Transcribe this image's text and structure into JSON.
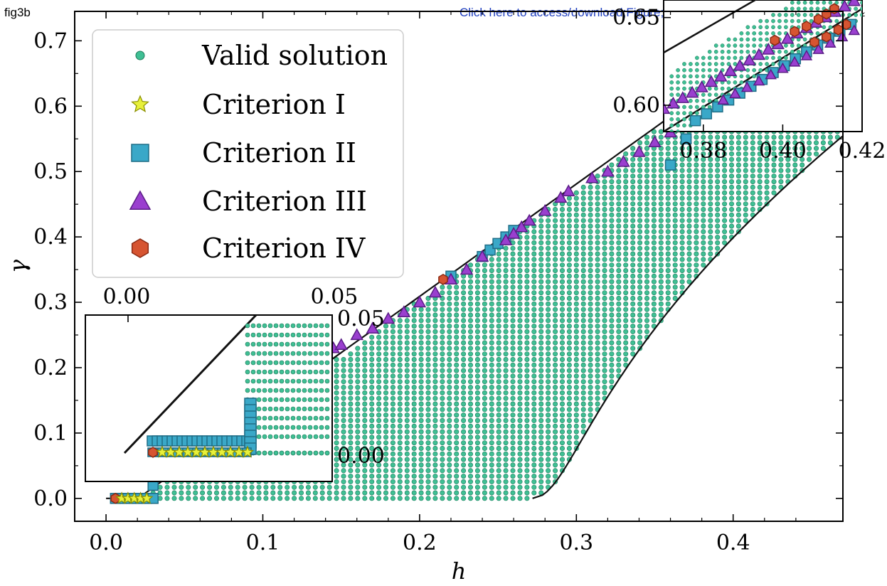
{
  "page": {
    "label": "fig3b",
    "link_text": "Click here to access/download;Figure;fig3b.pdf",
    "link_icon": "download-icon"
  },
  "colors": {
    "valid": "#3fbf94",
    "valid_edge": "#1d7a5a",
    "crit1": "#e7f03a",
    "crit1_edge": "#8a8f00",
    "crit2": "#3aa8c8",
    "crit2_edge": "#1f6d86",
    "crit3": "#9a3fcf",
    "crit3_edge": "#5a1d86",
    "crit4": "#d65431",
    "crit4_edge": "#8a2a14"
  },
  "chart_data": [
    {
      "type": "scatter",
      "xlabel": "h",
      "ylabel": "γ",
      "xlim": [
        -0.02,
        0.47
      ],
      "ylim": [
        -0.035,
        0.745
      ],
      "xticks": [
        "0.0",
        "0.1",
        "0.2",
        "0.3",
        "0.4"
      ],
      "yticks": [
        "0.0",
        "0.1",
        "0.2",
        "0.3",
        "0.4",
        "0.5",
        "0.6",
        "0.7"
      ],
      "legend_position": "upper-left",
      "series": [
        {
          "name": "Valid solution",
          "marker": "circle"
        },
        {
          "name": "Criterion I",
          "marker": "star",
          "points": [
            [
              0.01,
              0.0
            ],
            [
              0.014,
              0.0
            ],
            [
              0.018,
              0.0
            ],
            [
              0.022,
              0.0
            ],
            [
              0.026,
              0.0
            ]
          ]
        },
        {
          "name": "Criterion II",
          "marker": "square",
          "points": [
            [
              0.006,
              0.0
            ],
            [
              0.01,
              0.0
            ],
            [
              0.014,
              0.0
            ],
            [
              0.018,
              0.0
            ],
            [
              0.022,
              0.0
            ],
            [
              0.026,
              0.0
            ],
            [
              0.03,
              0.0
            ],
            [
              0.03,
              0.02
            ],
            [
              0.22,
              0.34
            ],
            [
              0.24,
              0.37
            ],
            [
              0.245,
              0.38
            ],
            [
              0.25,
              0.39
            ],
            [
              0.255,
              0.4
            ],
            [
              0.26,
              0.41
            ],
            [
              0.36,
              0.51
            ],
            [
              0.37,
              0.55
            ],
            [
              0.38,
              0.58
            ]
          ]
        },
        {
          "name": "Criterion III",
          "marker": "triangle",
          "points": [
            [
              0.145,
              0.23
            ],
            [
              0.15,
              0.235
            ],
            [
              0.16,
              0.25
            ],
            [
              0.17,
              0.26
            ],
            [
              0.18,
              0.275
            ],
            [
              0.19,
              0.285
            ],
            [
              0.2,
              0.3
            ],
            [
              0.21,
              0.315
            ],
            [
              0.22,
              0.335
            ],
            [
              0.23,
              0.35
            ],
            [
              0.24,
              0.37
            ],
            [
              0.255,
              0.395
            ],
            [
              0.26,
              0.405
            ],
            [
              0.265,
              0.415
            ],
            [
              0.27,
              0.425
            ],
            [
              0.28,
              0.44
            ],
            [
              0.29,
              0.46
            ],
            [
              0.295,
              0.47
            ],
            [
              0.31,
              0.49
            ],
            [
              0.32,
              0.5
            ],
            [
              0.33,
              0.515
            ],
            [
              0.34,
              0.53
            ],
            [
              0.35,
              0.545
            ],
            [
              0.36,
              0.56
            ],
            [
              0.37,
              0.575
            ],
            [
              0.38,
              0.59
            ],
            [
              0.39,
              0.605
            ],
            [
              0.4,
              0.62
            ],
            [
              0.41,
              0.635
            ],
            [
              0.42,
              0.648
            ],
            [
              0.43,
              0.66
            ],
            [
              0.44,
              0.675
            ],
            [
              0.45,
              0.69
            ],
            [
              0.46,
              0.705
            ]
          ]
        },
        {
          "name": "Criterion IV",
          "marker": "hexagon",
          "points": [
            [
              0.006,
              0.0
            ],
            [
              0.215,
              0.335
            ],
            [
              0.43,
              0.675
            ],
            [
              0.44,
              0.685
            ],
            [
              0.45,
              0.695
            ],
            [
              0.46,
              0.705
            ],
            [
              0.455,
              0.67
            ],
            [
              0.46,
              0.675
            ],
            [
              0.465,
              0.68
            ]
          ]
        }
      ]
    },
    {
      "type": "scatter",
      "inset": "lower-left",
      "xticks": [
        "0.00",
        "0.05"
      ],
      "yticks": [
        "0.00",
        "0.05"
      ]
    },
    {
      "type": "scatter",
      "inset": "upper-right",
      "xlim": [
        0.37,
        0.42
      ],
      "ylim": [
        0.585,
        0.66
      ],
      "xticks": [
        "0.38",
        "0.40",
        "0.42"
      ],
      "yticks": [
        "0.60",
        "0.65"
      ]
    }
  ]
}
